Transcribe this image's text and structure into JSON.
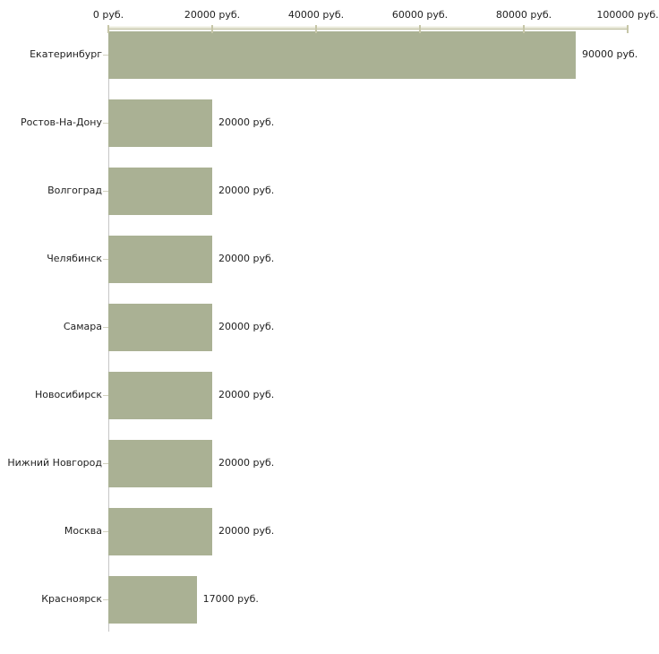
{
  "chart_data": {
    "type": "bar",
    "orientation": "horizontal",
    "title": "",
    "xlabel": "",
    "ylabel": "",
    "unit": "руб.",
    "grid": false,
    "legend": "none",
    "xlim": [
      0,
      100000
    ],
    "categories": [
      "Екатеринбург",
      "Ростов-На-Дону",
      "Волгоград",
      "Челябинск",
      "Самара",
      "Новосибирск",
      "Нижний Новгород",
      "Москва",
      "Красноярск"
    ],
    "values": [
      90000,
      20000,
      20000,
      20000,
      20000,
      20000,
      20000,
      20000,
      17000
    ],
    "value_labels": [
      "90000 руб.",
      "20000 руб.",
      "20000 руб.",
      "20000 руб.",
      "20000 руб.",
      "20000 руб.",
      "20000 руб.",
      "20000 руб.",
      "17000 руб."
    ],
    "x_tick_values": [
      0,
      20000,
      40000,
      60000,
      80000,
      100000
    ],
    "x_tick_labels": [
      "0 руб.",
      "20000 руб.",
      "40000 руб.",
      "60000 руб.",
      "80000 руб.",
      "100000 руб."
    ],
    "colors": {
      "background": "#ffffff",
      "bar": "#aab194",
      "axis_strip": "#e9e9da",
      "axis_strip_highlight": "#f7f7ef",
      "axis_strip_shadow": "#bcbc9c",
      "tick": "#c6c6a8",
      "category_tick": "#d2d2c0",
      "spine": "#c6c6c6",
      "text": "#1f1f1f"
    }
  }
}
